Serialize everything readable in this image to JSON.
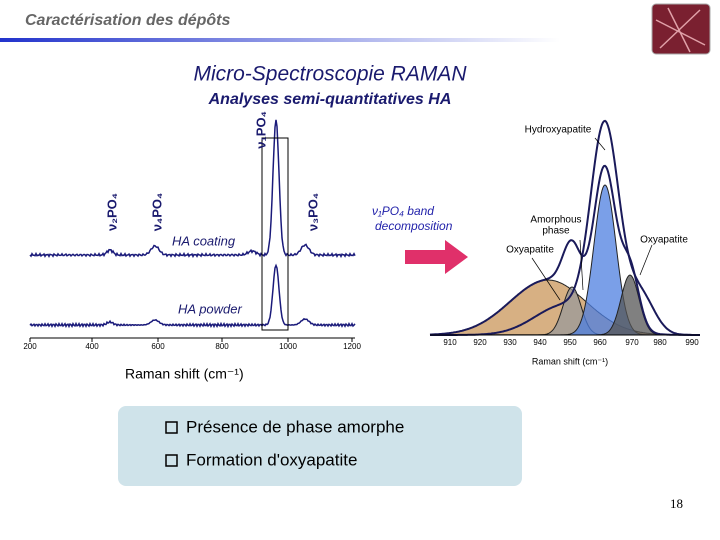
{
  "header": {
    "title": "Caractérisation des dépôts"
  },
  "title": "Micro-Spectroscopie RAMAN",
  "subtitle": "Analyses semi-quantitatives HA",
  "left_spectrum": {
    "peak_labels": [
      "ν₂PO₄",
      "ν₄PO₄",
      "ν₁PO₄",
      "ν₃PO₄"
    ],
    "trace_labels": [
      "HA coating",
      "HA powder"
    ],
    "x_ticks": [
      "200",
      "400",
      "600",
      "800",
      "1000",
      "1200"
    ],
    "x_label": "Raman shift (cm⁻¹)"
  },
  "arrow_label": [
    "ν₁PO₄ band",
    "decomposition"
  ],
  "right_spectrum": {
    "labels": [
      "Hydroxyapatite",
      "Amorphous",
      "phase",
      "Oxyapatite",
      "Oxyapatite"
    ],
    "x_ticks": [
      "910",
      "920",
      "930",
      "940",
      "950",
      "960",
      "970",
      "980",
      "990"
    ],
    "x_label": "Raman shift (cm⁻¹)"
  },
  "bullets": [
    "Présence de phase amorphe",
    "Formation d'oxyapatite"
  ],
  "page_number": "18"
}
